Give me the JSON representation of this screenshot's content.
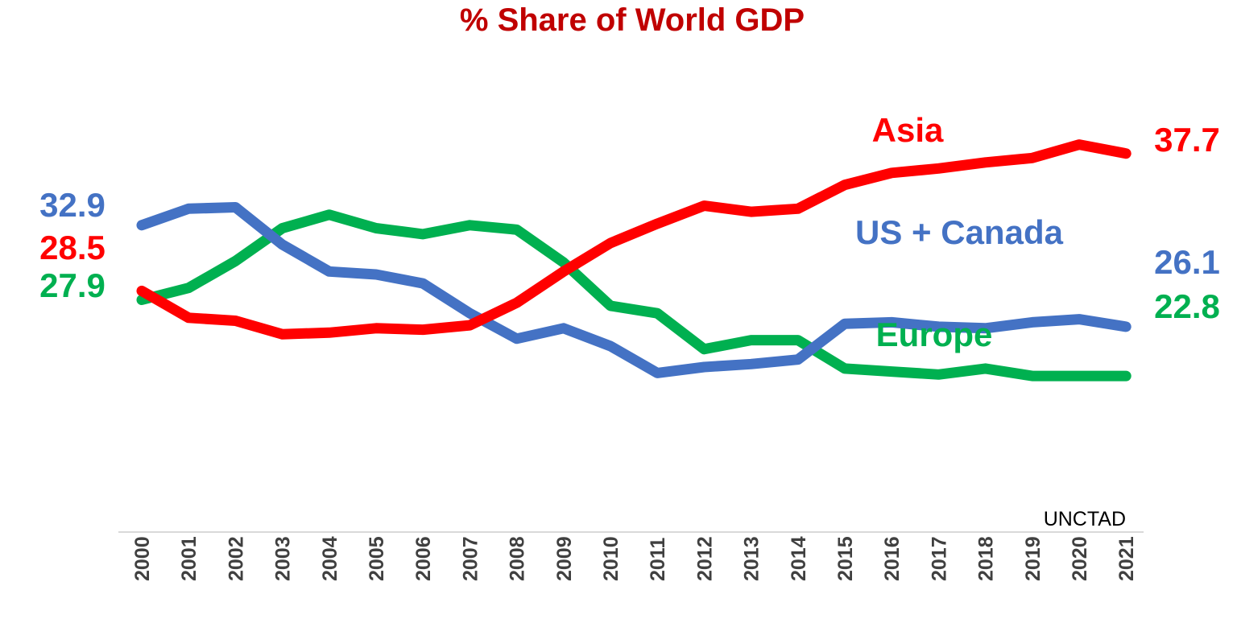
{
  "chart_data": {
    "type": "line",
    "title": "% Share of World GDP",
    "source": "UNCTAD",
    "xlabel": "",
    "ylabel": "",
    "ylim": [
      0,
      45
    ],
    "grid": false,
    "categories": [
      "2000",
      "2001",
      "2002",
      "2003",
      "2004",
      "2005",
      "2006",
      "2007",
      "2008",
      "2009",
      "2010",
      "2011",
      "2012",
      "2013",
      "2014",
      "2015",
      "2016",
      "2017",
      "2018",
      "2019",
      "2020",
      "2021"
    ],
    "series": [
      {
        "name": "Asia",
        "color": "#ff0000",
        "start_label": "28.5",
        "end_label": "37.7",
        "values": [
          28.5,
          26.7,
          26.5,
          25.6,
          25.7,
          26.0,
          25.9,
          26.2,
          27.7,
          29.8,
          31.7,
          33.0,
          34.2,
          33.8,
          34.0,
          35.6,
          36.4,
          36.7,
          37.1,
          37.4,
          38.3,
          37.7
        ]
      },
      {
        "name": "US + Canada",
        "color": "#4472c4",
        "start_label": "32.9",
        "end_label": "26.1",
        "values": [
          32.9,
          34.0,
          34.1,
          31.6,
          29.8,
          29.6,
          29.0,
          27.0,
          25.3,
          26.0,
          24.8,
          23.0,
          23.4,
          23.6,
          23.9,
          26.3,
          26.4,
          26.1,
          26.0,
          26.4,
          26.6,
          26.1
        ]
      },
      {
        "name": "Europe",
        "color": "#00b050",
        "start_label": "27.9",
        "end_label": "22.8",
        "values": [
          27.9,
          28.7,
          30.5,
          32.7,
          33.6,
          32.7,
          32.3,
          32.9,
          32.6,
          30.4,
          27.5,
          27.0,
          24.6,
          25.2,
          25.2,
          23.3,
          23.1,
          22.9,
          23.3,
          22.8,
          22.8,
          22.8
        ]
      }
    ]
  }
}
